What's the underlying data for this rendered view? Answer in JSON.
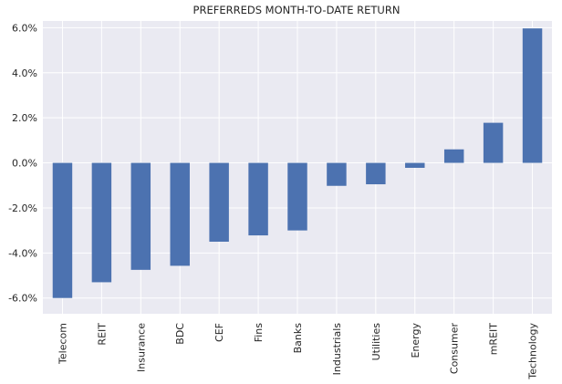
{
  "chart_data": {
    "type": "bar",
    "title": "PREFERREDS MONTH-TO-DATE RETURN",
    "xlabel": "",
    "ylabel": "",
    "categories": [
      "Telecom",
      "REIT",
      "Insurance",
      "BDC",
      "CEF",
      "Fins",
      "Banks",
      "Industrials",
      "Utilities",
      "Energy",
      "Consumer",
      "mREIT",
      "Technology"
    ],
    "values": [
      -6.0,
      -5.3,
      -4.75,
      -4.57,
      -3.5,
      -3.22,
      -3.0,
      -1.02,
      -0.95,
      -0.22,
      0.6,
      1.78,
      5.97
    ],
    "ylim": [
      -6.7,
      6.3
    ],
    "yticks": [
      -6,
      -4,
      -2,
      0,
      2,
      4,
      6
    ],
    "ytick_labels": [
      "-6.0%",
      "-4.0%",
      "-2.0%",
      "0.0%",
      "2.0%",
      "4.0%",
      "6.0%"
    ],
    "grid": true,
    "bar_color": "#4c72b0",
    "background_color": "#eaeaf2"
  }
}
